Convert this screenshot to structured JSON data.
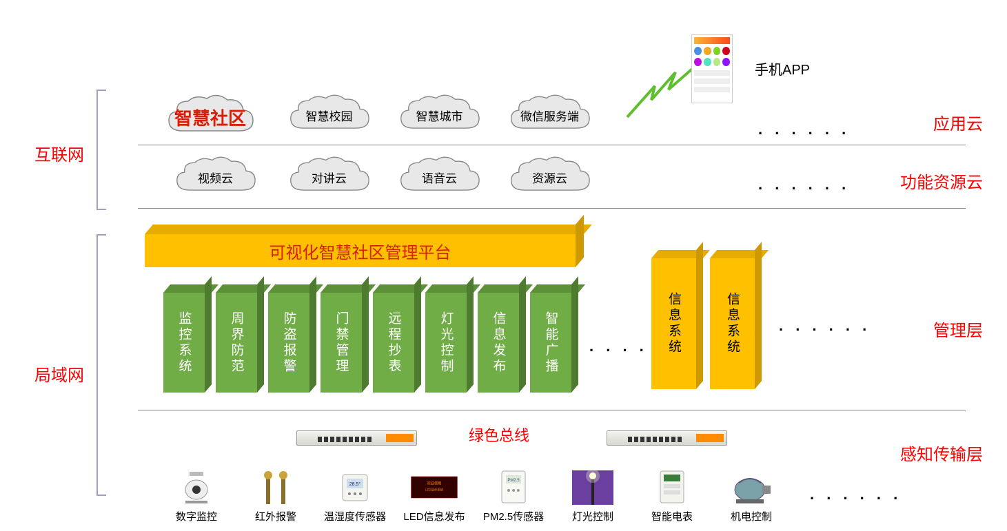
{
  "colors": {
    "red": "#ff0000",
    "highlight_red": "#d81e06",
    "platform_front": "#ffc000",
    "platform_top": "#e6ad00",
    "platform_side": "#cc9a00",
    "green_front": "#70ad47",
    "green_top": "#5c9139",
    "green_side": "#4e7b30",
    "orange_front": "#ffc000",
    "orange_top": "#e6ad00",
    "orange_side": "#cc9a00",
    "cloud_fill": "#e8e8e8",
    "cloud_stroke": "#888888",
    "bolt": "#5fbf2f",
    "sep": "#888888"
  },
  "left_side": {
    "internet": "互联网",
    "lan": "局域网"
  },
  "layers": {
    "app": "应用云",
    "func": "功能资源云",
    "mgmt": "管理层",
    "sense": "感知传输层"
  },
  "dots": ". . . . . .",
  "dots_short": ". . . . .",
  "app_mobile_label": "手机APP",
  "clouds_row1": {
    "highlight": "智慧社区",
    "items": [
      "智慧校园",
      "智慧城市",
      "微信服务端"
    ]
  },
  "clouds_row2": [
    "视频云",
    "对讲云",
    "语音云",
    "资源云"
  ],
  "platform": "可视化智慧社区管理平台",
  "green_blocks": [
    "监控系统",
    "周界防范",
    "防盗报警",
    "门禁管理",
    "远程抄表",
    "灯光控制",
    "信息发布",
    "智能广播"
  ],
  "orange_blocks": [
    "信息系统",
    "信息系统"
  ],
  "bus_label": "绿色总线",
  "devices": [
    {
      "name": "数字监控",
      "icon": "camera"
    },
    {
      "name": "红外报警",
      "icon": "ir-post"
    },
    {
      "name": "温湿度传感器",
      "icon": "thermo"
    },
    {
      "name": "LED信息发布",
      "icon": "led"
    },
    {
      "name": "PM2.5传感器",
      "icon": "pm25"
    },
    {
      "name": "灯光控制",
      "icon": "streetlight"
    },
    {
      "name": "智能电表",
      "icon": "meter"
    },
    {
      "name": "机电控制",
      "icon": "motor"
    }
  ],
  "device_dots": ". . . . . ."
}
